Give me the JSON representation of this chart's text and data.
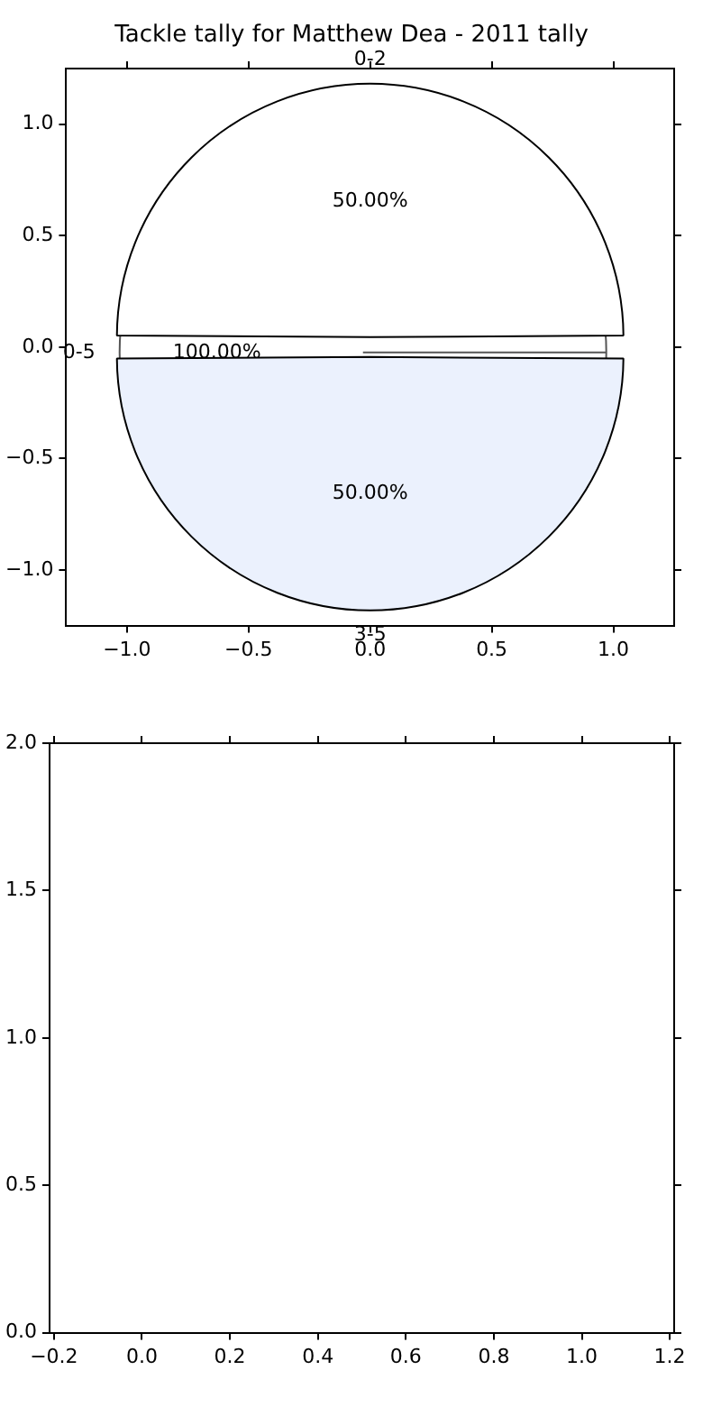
{
  "chart_data": [
    {
      "type": "scatter",
      "title": "Tackle tally for Matthew Dea - 2011 tally",
      "xlim": [
        -1.25,
        1.25
      ],
      "ylim": [
        -1.25,
        1.25
      ],
      "xticks": [
        {
          "value": -1,
          "label": "−1.0"
        },
        {
          "value": -0.5,
          "label": "−0.5"
        },
        {
          "value": 0,
          "label": "0.0"
        },
        {
          "value": 0.5,
          "label": "0.5"
        },
        {
          "value": 1,
          "label": "1.0"
        }
      ],
      "yticks": [
        {
          "value": -1,
          "label": "−1.0"
        },
        {
          "value": -0.5,
          "label": "−0.5"
        },
        {
          "value": 0,
          "label": "0.0"
        },
        {
          "value": 0.5,
          "label": "0.5"
        },
        {
          "value": 1,
          "label": "1.0"
        }
      ]
    },
    {
      "type": "pie",
      "categories": [
        "0-2",
        "3-5"
      ],
      "values": [
        50,
        50
      ],
      "value_labels": [
        "50.00%",
        "50.00%"
      ],
      "colors": [
        "#ffffff",
        "#ebf1fd"
      ]
    },
    {
      "type": "pie",
      "categories": [
        "0-5"
      ],
      "values": [
        100
      ],
      "value_labels": [
        "100.00%"
      ],
      "colors": [
        "#ffffff"
      ]
    },
    {
      "type": "scatter",
      "xlim": [
        -0.21,
        1.21
      ],
      "ylim": [
        0,
        2
      ],
      "xticks": [
        {
          "value": -0.2,
          "label": "−0.2"
        },
        {
          "value": 0,
          "label": "0.0"
        },
        {
          "value": 0.2,
          "label": "0.2"
        },
        {
          "value": 0.4,
          "label": "0.4"
        },
        {
          "value": 0.6,
          "label": "0.6"
        },
        {
          "value": 0.8,
          "label": "0.8"
        },
        {
          "value": 1,
          "label": "1.0"
        },
        {
          "value": 1.2,
          "label": "1.2"
        }
      ],
      "yticks": [
        {
          "value": 0,
          "label": "0.0"
        },
        {
          "value": 0.5,
          "label": "0.5"
        },
        {
          "value": 1,
          "label": "1.0"
        },
        {
          "value": 1.5,
          "label": "1.5"
        },
        {
          "value": 2,
          "label": "2.0"
        }
      ]
    }
  ]
}
